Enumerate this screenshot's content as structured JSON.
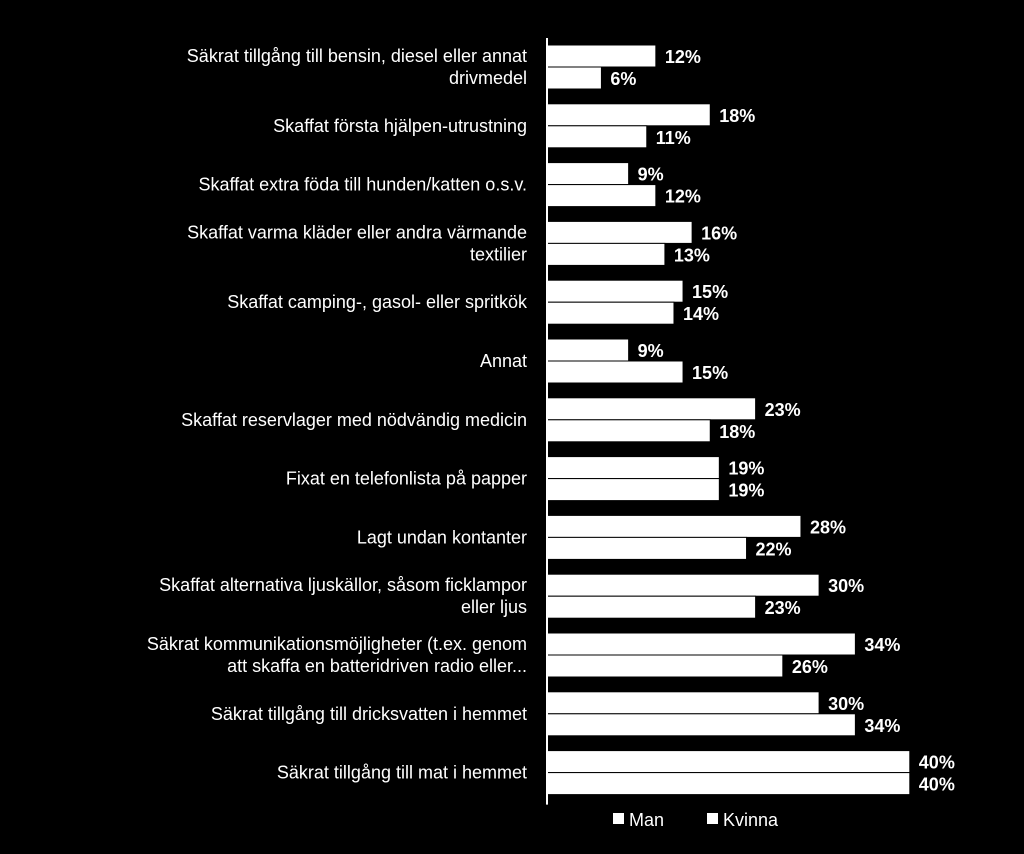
{
  "chart_data": {
    "type": "bar",
    "orientation": "horizontal",
    "categories": [
      [
        "Säkrat tillgång till bensin, diesel eller annat",
        "drivmedel"
      ],
      [
        "Skaffat första hjälpen-utrustning"
      ],
      [
        "Skaffat extra föda till hunden/katten o.s.v."
      ],
      [
        "Skaffat varma kläder eller andra värmande",
        "textilier"
      ],
      [
        "Skaffat camping-, gasol- eller spritkök"
      ],
      [
        "Annat"
      ],
      [
        "Skaffat reservlager med nödvändig medicin"
      ],
      [
        "Fixat en telefonlista på papper"
      ],
      [
        "Lagt undan kontanter"
      ],
      [
        "Skaffat alternativa ljuskällor, såsom ficklampor",
        "eller ljus"
      ],
      [
        "Säkrat kommunikationsmöjligheter (t.ex. genom",
        "att skaffa en batteridriven radio eller..."
      ],
      [
        "Säkrat tillgång till dricksvatten i hemmet"
      ],
      [
        "Säkrat tillgång till mat i hemmet"
      ]
    ],
    "series": [
      {
        "name": "Man",
        "values": [
          12,
          18,
          9,
          16,
          15,
          9,
          23,
          19,
          28,
          30,
          34,
          30,
          40
        ],
        "labels": [
          "12%",
          "18%",
          "9%",
          "16%",
          "15%",
          "9%",
          "23%",
          "19%",
          "28%",
          "30%",
          "34%",
          "30%",
          "40%"
        ],
        "color": "#ffffff"
      },
      {
        "name": "Kvinna",
        "values": [
          6,
          11,
          12,
          13,
          14,
          15,
          18,
          19,
          22,
          23,
          26,
          34,
          40
        ],
        "labels": [
          "6%",
          "11%",
          "12%",
          "13%",
          "14%",
          "15%",
          "18%",
          "19%",
          "22%",
          "23%",
          "26%",
          "34%",
          "40%"
        ],
        "color": "#ffffff"
      }
    ],
    "xlim": [
      0,
      40
    ],
    "unit": "%",
    "legend_position": "bottom",
    "grid": false,
    "title": "",
    "xlabel": "",
    "ylabel": "",
    "colors": {
      "background": "#000000",
      "bar": "#ffffff",
      "text": "#ffffff"
    }
  },
  "legend": {
    "items": [
      "Man",
      "Kvinna"
    ]
  }
}
